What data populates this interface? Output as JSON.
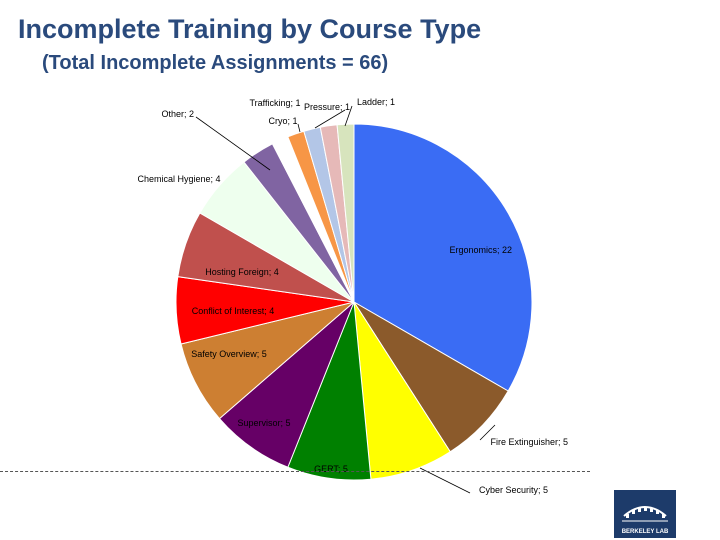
{
  "title": "Incomplete Training by Course Type",
  "subtitle": "(Total Incomplete Assignments = 66)",
  "logo_text": "BERKELEY LAB",
  "chart_data": {
    "type": "pie",
    "title": "Incomplete Training by Course Type",
    "subtitle": "(Total Incomplete Assignments = 66)",
    "legend": "none",
    "slices": [
      {
        "label": "Ergonomics; 22",
        "name": "Ergonomics",
        "value": 22,
        "color": "#3a6cf4"
      },
      {
        "label": "Fire Extinguisher; 5",
        "name": "Fire Extinguisher",
        "value": 5,
        "color": "#8b5a2b"
      },
      {
        "label": "Cyber Security; 5",
        "name": "Cyber Security",
        "value": 5,
        "color": "#ffff00"
      },
      {
        "label": "GERT; 5",
        "name": "GERT",
        "value": 5,
        "color": "#008000"
      },
      {
        "label": "Supervisor; 5",
        "name": "Supervisor",
        "value": 5,
        "color": "#660066"
      },
      {
        "label": "Safety Overview; 5",
        "name": "Safety Overview",
        "value": 5,
        "color": "#cd7f32"
      },
      {
        "label": "Conflict of Interest; 4",
        "name": "Conflict of Interest",
        "value": 4,
        "color": "#ff0000"
      },
      {
        "label": "Hosting Foreign; 4",
        "name": "Hosting Foreign",
        "value": 4,
        "color": "#c0504d"
      },
      {
        "label": "Chemical Hygiene; 4",
        "name": "Chemical Hygiene",
        "value": 4,
        "color": "#eeffee"
      },
      {
        "label": "Other; 2",
        "name": "Other",
        "value": 2,
        "color": "#8064a2"
      },
      {
        "label": "Trafficking; 1",
        "name": "Trafficking",
        "value": 1,
        "color": "#ffffff"
      },
      {
        "label": "Cryo; 1",
        "name": "Cryo",
        "value": 1,
        "color": "#f79646"
      },
      {
        "label": "Pressure; 1",
        "name": "Pressure",
        "value": 1,
        "color": "#b3c6e7"
      },
      {
        "label": "Ladder; 1",
        "name": "Ladder",
        "value": 1,
        "color": "#e6b9b8"
      },
      {
        "label": "",
        "name": "",
        "value": 1,
        "color": "#d7e4bd"
      }
    ]
  }
}
